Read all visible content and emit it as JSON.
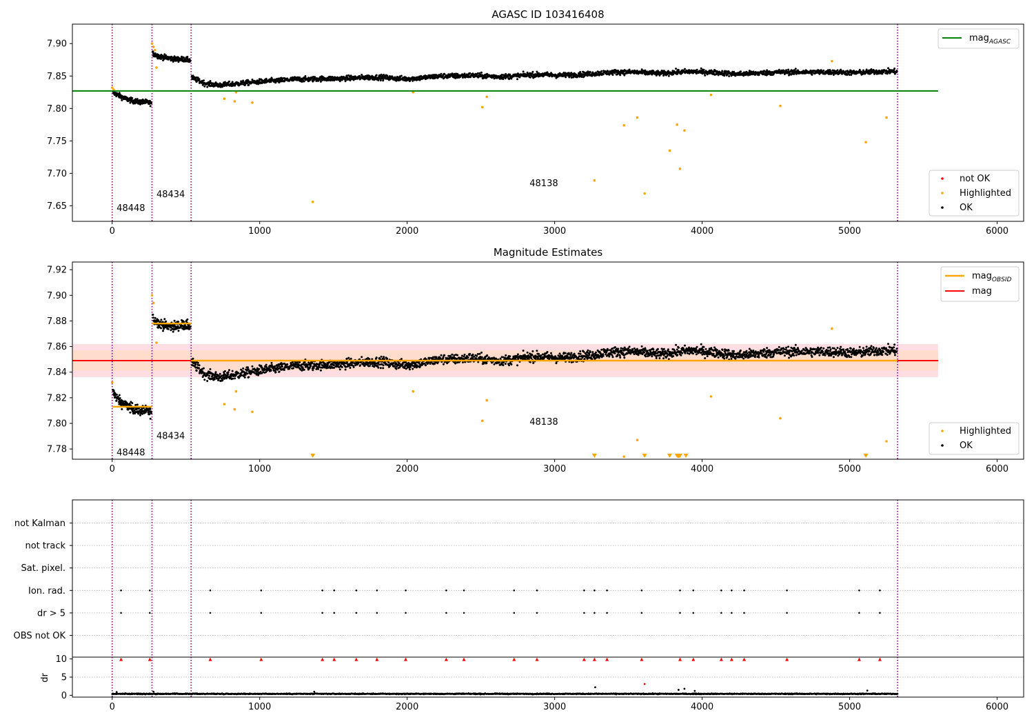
{
  "colors": {
    "ok": "#000000",
    "highlighted": "#ffa500",
    "not_ok": "#ff0000",
    "agasc_line": "#008000",
    "mag_line": "#ff0000",
    "obsid_line": "#ffa500",
    "band_outer": "#ffb6c1",
    "band_inner": "#ffdab9",
    "obs_boundary": "#800080"
  },
  "chart_data": [
    {
      "id": "top",
      "type": "scatter",
      "title": "AGASC ID 103416408",
      "xlim": [
        -270,
        6180
      ],
      "ylim": [
        7.626,
        7.93
      ],
      "xticks": [
        0,
        1000,
        2000,
        3000,
        4000,
        5000,
        6000
      ],
      "yticks": [
        "7.65",
        "7.70",
        "7.75",
        "7.80",
        "7.85",
        "7.90"
      ],
      "obs_boundaries": [
        0,
        270,
        535,
        5325
      ],
      "obs_labels": [
        {
          "text": "48448",
          "x": 30,
          "y": 7.642
        },
        {
          "text": "48434",
          "x": 300,
          "y": 7.663
        },
        {
          "text": "48138",
          "x": 2830,
          "y": 7.68
        }
      ],
      "agasc_mag": {
        "value": 7.827,
        "x_range": [
          -270,
          5600
        ]
      },
      "legend_line": {
        "label": "mag",
        "sub": "AGASC"
      },
      "legend_points": [
        "not OK",
        "Highlighted",
        "OK"
      ],
      "segments": [
        {
          "x0": 0,
          "x1": 270,
          "values": [
            7.825,
            7.82,
            7.815,
            7.812,
            7.81,
            7.81,
            7.808
          ]
        },
        {
          "x0": 270,
          "x1": 535,
          "values": [
            7.885,
            7.88,
            7.878,
            7.876,
            7.876,
            7.874
          ]
        },
        {
          "x0": 535,
          "x1": 5325,
          "values": [
            7.848,
            7.838,
            7.836,
            7.838,
            7.84,
            7.842,
            7.843,
            7.845,
            7.845,
            7.846,
            7.846,
            7.847,
            7.848,
            7.848,
            7.846,
            7.846,
            7.848,
            7.85,
            7.85,
            7.851,
            7.85,
            7.849,
            7.85,
            7.852,
            7.852,
            7.851,
            7.852,
            7.853,
            7.855,
            7.856,
            7.856,
            7.855,
            7.854,
            7.856,
            7.857,
            7.856,
            7.855,
            7.853,
            7.854,
            7.855,
            7.856,
            7.856,
            7.856,
            7.856,
            7.856,
            7.855,
            7.856,
            7.857,
            7.857
          ]
        }
      ],
      "highlighted": [
        [
          0,
          7.832
        ],
        [
          10,
          7.829
        ],
        [
          270,
          7.9
        ],
        [
          280,
          7.895
        ],
        [
          290,
          7.89
        ],
        [
          300,
          7.863
        ],
        [
          760,
          7.815
        ],
        [
          830,
          7.811
        ],
        [
          840,
          7.825
        ],
        [
          950,
          7.809
        ],
        [
          1360,
          7.656
        ],
        [
          2040,
          7.825
        ],
        [
          2510,
          7.802
        ],
        [
          2540,
          7.818
        ],
        [
          3270,
          7.689
        ],
        [
          3470,
          7.774
        ],
        [
          3560,
          7.786
        ],
        [
          3610,
          7.669
        ],
        [
          3780,
          7.735
        ],
        [
          3830,
          7.775
        ],
        [
          3850,
          7.707
        ],
        [
          3880,
          7.766
        ],
        [
          4060,
          7.821
        ],
        [
          4530,
          7.804
        ],
        [
          4880,
          7.873
        ],
        [
          5110,
          7.748
        ],
        [
          5250,
          7.786
        ]
      ]
    },
    {
      "id": "middle",
      "type": "scatter",
      "title": "Magnitude Estimates",
      "xlim": [
        -270,
        6180
      ],
      "ylim": [
        7.772,
        7.926
      ],
      "xticks": [
        0,
        1000,
        2000,
        3000,
        4000,
        5000,
        6000
      ],
      "yticks": [
        "7.78",
        "7.80",
        "7.82",
        "7.84",
        "7.86",
        "7.88",
        "7.90",
        "7.92"
      ],
      "obs_boundaries": [
        0,
        270,
        535,
        5325
      ],
      "obs_labels": [
        {
          "text": "48448",
          "x": 30,
          "y": 7.775
        },
        {
          "text": "48434",
          "x": 300,
          "y": 7.788
        },
        {
          "text": "48138",
          "x": 2830,
          "y": 7.799
        }
      ],
      "mag": {
        "value": 7.849,
        "outer_band": [
          7.836,
          7.862
        ],
        "inner_band": [
          7.841,
          7.857
        ],
        "x_range": [
          -270,
          5600
        ]
      },
      "obsid_mags": [
        {
          "x0": 0,
          "x1": 270,
          "value": 7.813
        },
        {
          "x0": 270,
          "x1": 535,
          "value": 7.878
        },
        {
          "x0": 535,
          "x1": 5325,
          "value": 7.849
        }
      ],
      "legend_lines": [
        {
          "label": "mag",
          "sub": "OBSID"
        },
        {
          "label": "mag",
          "sub": ""
        }
      ],
      "legend_points": [
        "Highlighted",
        "OK"
      ],
      "segments": [
        {
          "x0": 0,
          "x1": 270,
          "values": [
            7.825,
            7.818,
            7.814,
            7.812,
            7.81,
            7.81,
            7.808
          ]
        },
        {
          "x0": 270,
          "x1": 535,
          "values": [
            7.882,
            7.878,
            7.876,
            7.876,
            7.877,
            7.876
          ]
        },
        {
          "x0": 535,
          "x1": 5325,
          "values": [
            7.848,
            7.838,
            7.836,
            7.838,
            7.84,
            7.842,
            7.843,
            7.845,
            7.845,
            7.846,
            7.846,
            7.847,
            7.848,
            7.848,
            7.846,
            7.846,
            7.848,
            7.85,
            7.85,
            7.851,
            7.85,
            7.849,
            7.85,
            7.852,
            7.852,
            7.851,
            7.852,
            7.853,
            7.855,
            7.856,
            7.856,
            7.855,
            7.854,
            7.856,
            7.857,
            7.856,
            7.855,
            7.853,
            7.854,
            7.855,
            7.856,
            7.856,
            7.856,
            7.856,
            7.856,
            7.855,
            7.856,
            7.857,
            7.857
          ]
        }
      ],
      "highlighted": [
        [
          0,
          7.832
        ],
        [
          270,
          7.9
        ],
        [
          280,
          7.894
        ],
        [
          300,
          7.863
        ],
        [
          760,
          7.815
        ],
        [
          830,
          7.811
        ],
        [
          840,
          7.825
        ],
        [
          950,
          7.809
        ],
        [
          2040,
          7.825
        ],
        [
          2510,
          7.802
        ],
        [
          2540,
          7.818
        ],
        [
          3470,
          7.774
        ],
        [
          3560,
          7.787
        ],
        [
          3610,
          7.775
        ],
        [
          3840,
          7.774
        ],
        [
          4060,
          7.821
        ],
        [
          4530,
          7.804
        ],
        [
          4880,
          7.874
        ],
        [
          5250,
          7.786
        ]
      ],
      "below_range_markers": [
        1360,
        3270,
        3610,
        3780,
        3830,
        3850,
        3890,
        5110
      ]
    },
    {
      "id": "flags",
      "type": "scatter",
      "title": "",
      "xlim": [
        -270,
        6180
      ],
      "categories": [
        "not Kalman",
        "not track",
        "Sat. pixel.",
        "Ion. rad.",
        "dr > 5",
        "OBS not OK"
      ],
      "flag_events": {
        "Ion. rad.": [
          60,
          255,
          665,
          1010,
          1425,
          1505,
          1655,
          1795,
          1990,
          2265,
          2385,
          2725,
          2880,
          3200,
          3270,
          3355,
          3590,
          3850,
          3940,
          4130,
          4200,
          4285,
          4575,
          5065,
          5205
        ],
        "dr > 5": [
          60,
          255,
          665,
          1010,
          1425,
          1505,
          1655,
          1795,
          1990,
          2265,
          2385,
          2725,
          2880,
          3200,
          3270,
          3355,
          3590,
          3850,
          3940,
          4130,
          4200,
          4285,
          4575,
          5065,
          5205
        ]
      },
      "obs_boundaries": [
        0,
        270,
        535,
        5325
      ]
    },
    {
      "id": "dr",
      "type": "scatter",
      "title": "",
      "xlim": [
        -270,
        6180
      ],
      "ylim": [
        -0.5,
        10.5
      ],
      "xticks": [
        0,
        1000,
        2000,
        3000,
        4000,
        5000,
        6000
      ],
      "yticks": [
        "0",
        "5",
        "10"
      ],
      "ylabel": "dr",
      "dr_range": [
        0,
        5325
      ],
      "dr_typical": 0.4,
      "dr_spikes": [
        [
          3275,
          2.2
        ],
        [
          3610,
          3.1
        ],
        [
          3840,
          1.5
        ],
        [
          3880,
          1.8
        ],
        [
          3950,
          1.2
        ],
        [
          1370,
          1.0
        ],
        [
          5120,
          1.3
        ],
        [
          30,
          0.9
        ],
        [
          280,
          1.0
        ]
      ],
      "clipped_markers": [
        60,
        255,
        665,
        1010,
        1425,
        1505,
        1655,
        1795,
        1990,
        2265,
        2385,
        2725,
        2880,
        3200,
        3270,
        3355,
        3590,
        3850,
        3940,
        4130,
        4200,
        4285,
        4575,
        5065,
        5205
      ],
      "obs_boundaries": [
        0,
        270,
        535,
        5325
      ]
    }
  ]
}
